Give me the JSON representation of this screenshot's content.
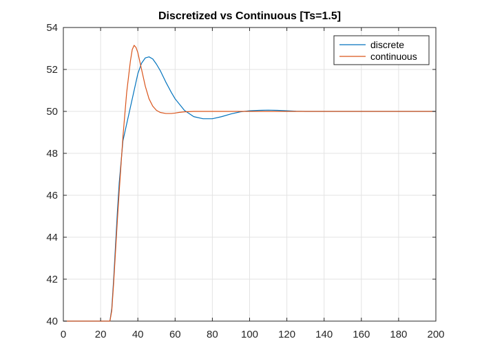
{
  "chart_data": {
    "type": "line",
    "title": "Discretized vs Continuous [Ts=1.5]",
    "xlabel": "",
    "ylabel": "",
    "xlim": [
      0,
      200
    ],
    "ylim": [
      40,
      54
    ],
    "xticks": [
      0,
      20,
      40,
      60,
      80,
      100,
      120,
      140,
      160,
      180,
      200
    ],
    "yticks": [
      40,
      42,
      44,
      46,
      48,
      50,
      52,
      54
    ],
    "grid": true,
    "legend_position": "top-right",
    "series": [
      {
        "name": "discrete",
        "color": "#0072BD",
        "x": [
          0,
          25,
          26,
          27,
          28,
          29,
          30,
          32,
          34,
          36,
          38,
          40,
          42,
          44,
          46,
          48,
          50,
          52,
          55,
          58,
          60,
          65,
          70,
          75,
          80,
          85,
          90,
          95,
          100,
          105,
          110,
          115,
          120,
          125,
          130,
          140,
          150,
          160,
          180,
          200
        ],
        "y": [
          40,
          40,
          40.6,
          42.0,
          43.6,
          45.2,
          46.6,
          48.6,
          49.4,
          50.2,
          51.0,
          51.8,
          52.3,
          52.55,
          52.6,
          52.5,
          52.25,
          51.95,
          51.4,
          50.9,
          50.6,
          50.05,
          49.75,
          49.65,
          49.65,
          49.75,
          49.88,
          49.98,
          50.03,
          50.05,
          50.06,
          50.05,
          50.03,
          50.01,
          50.0,
          50.0,
          50.0,
          50.0,
          50.0,
          50.0
        ]
      },
      {
        "name": "continuous",
        "color": "#D95319",
        "x": [
          0,
          25,
          26,
          27,
          28,
          29,
          30,
          32,
          34,
          36,
          37,
          38,
          39,
          40,
          42,
          44,
          46,
          48,
          50,
          52,
          55,
          58,
          60,
          62,
          65,
          70,
          75,
          80,
          90,
          100,
          110,
          120,
          140,
          160,
          180,
          200
        ],
        "y": [
          40,
          40,
          40.5,
          41.8,
          43.3,
          44.8,
          46.2,
          48.8,
          50.9,
          52.4,
          52.95,
          53.15,
          53.05,
          52.8,
          52.0,
          51.2,
          50.6,
          50.25,
          50.05,
          49.95,
          49.9,
          49.9,
          49.92,
          49.95,
          49.98,
          50.0,
          50.0,
          50.0,
          50.0,
          50.0,
          50.0,
          50.0,
          50.0,
          50.0,
          50.0,
          50.0
        ]
      }
    ]
  }
}
